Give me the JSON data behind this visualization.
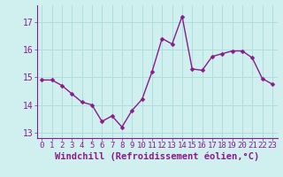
{
  "x": [
    0,
    1,
    2,
    3,
    4,
    5,
    6,
    7,
    8,
    9,
    10,
    11,
    12,
    13,
    14,
    15,
    16,
    17,
    18,
    19,
    20,
    21,
    22,
    23
  ],
  "y": [
    14.9,
    14.9,
    14.7,
    14.4,
    14.1,
    14.0,
    13.4,
    13.6,
    13.2,
    13.8,
    14.2,
    15.2,
    16.4,
    16.2,
    17.2,
    15.3,
    15.25,
    15.75,
    15.85,
    15.95,
    15.95,
    15.7,
    14.95,
    14.75
  ],
  "line_color": "#8b1a8b",
  "marker": "D",
  "marker_size": 2.5,
  "bg_color": "#cff0ef",
  "grid_color": "#b0dedd",
  "xlabel": "Windchill (Refroidissement éolien,°C)",
  "ylim": [
    12.8,
    17.6
  ],
  "yticks": [
    13,
    14,
    15,
    16,
    17
  ],
  "xticks": [
    0,
    1,
    2,
    3,
    4,
    5,
    6,
    7,
    8,
    9,
    10,
    11,
    12,
    13,
    14,
    15,
    16,
    17,
    18,
    19,
    20,
    21,
    22,
    23
  ],
  "tick_color": "#8b1a8b",
  "font_color": "#8b1a8b",
  "xlabel_fontsize": 7.5,
  "tick_fontsize": 6.5,
  "linewidth": 1.0
}
